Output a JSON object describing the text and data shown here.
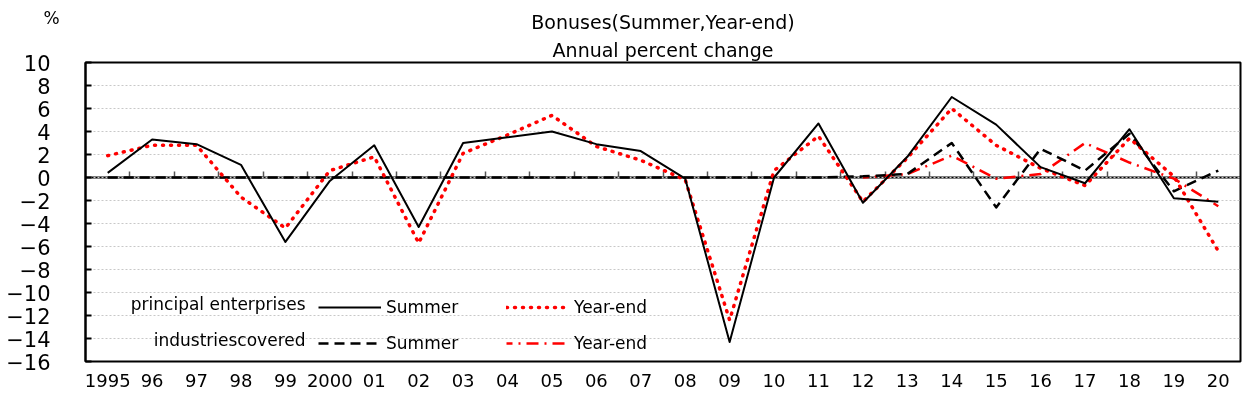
{
  "chart_data": {
    "type": "line",
    "title": "Bonuses(Summer,Year-end)",
    "subtitle": "Annual percent change",
    "ylabel": "%",
    "categories": [
      "1995",
      "96",
      "97",
      "98",
      "99",
      "2000",
      "01",
      "02",
      "03",
      "04",
      "05",
      "06",
      "07",
      "08",
      "09",
      "10",
      "11",
      "12",
      "13",
      "14",
      "15",
      "16",
      "17",
      "18",
      "19",
      "20"
    ],
    "series": [
      {
        "name": "Summer",
        "color": "#000000",
        "line_style": "solid",
        "values": [
          0.4,
          3.3,
          2.9,
          1.1,
          -5.6,
          -0.3,
          2.8,
          -4.3,
          3.0,
          3.5,
          4.0,
          2.9,
          2.3,
          -0.1,
          -14.3,
          0.0,
          4.7,
          -2.2,
          1.8,
          7.0,
          4.6,
          0.9,
          -0.5,
          4.2,
          -1.8,
          -2.1
        ]
      },
      {
        "name": "Year-end",
        "color": "#ff0000",
        "line_style": "dotted",
        "values": [
          1.9,
          2.8,
          2.8,
          -1.7,
          -4.4,
          0.6,
          1.8,
          -5.7,
          2.1,
          3.7,
          5.4,
          2.7,
          1.5,
          -0.2,
          -12.4,
          0.6,
          3.6,
          -2.1,
          1.7,
          6.0,
          2.8,
          0.8,
          -0.7,
          3.4,
          0.1,
          -6.4
        ]
      },
      {
        "name": "Summer",
        "color": "#000000",
        "line_style": "dashed",
        "values": [
          0,
          0,
          0,
          0,
          0,
          0,
          0,
          0,
          0,
          0,
          0,
          0,
          0,
          0,
          0,
          0,
          0,
          0.1,
          0.3,
          3.0,
          -2.6,
          2.5,
          0.6,
          3.8,
          -1.2,
          0.6
        ]
      },
      {
        "name": "Year-end",
        "color": "#ff0000",
        "line_style": "dashdot",
        "values": [
          null,
          null,
          null,
          null,
          null,
          null,
          null,
          null,
          null,
          null,
          null,
          null,
          null,
          null,
          null,
          null,
          null,
          0.0,
          0.3,
          1.9,
          -0.1,
          0.3,
          3.0,
          1.3,
          -0.1,
          -2.5
        ]
      }
    ],
    "annotations": [
      "principal enterprises",
      "industriescovered"
    ],
    "ylim": [
      -16,
      10
    ],
    "yticks": [
      10,
      8,
      6,
      4,
      2,
      0,
      -2,
      -4,
      -6,
      -8,
      -10,
      -12,
      -14,
      -16
    ],
    "ref_lines": [
      {
        "axis": "y",
        "value": 0
      }
    ],
    "grid": "y",
    "legend": "bottom left"
  }
}
